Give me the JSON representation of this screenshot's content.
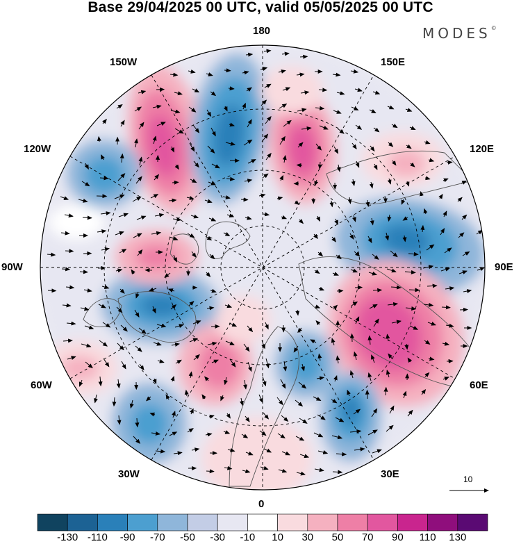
{
  "header": {
    "title": "Base 29/04/2025 00 UTC, valid 05/05/2025 00 UTC",
    "brand": "MODES",
    "brand_mark": "©"
  },
  "longitude_labels": [
    "180",
    "150E",
    "120E",
    "90E",
    "60E",
    "30E",
    "0",
    "30W",
    "60W",
    "90W",
    "120W",
    "150W"
  ],
  "reference_vector": {
    "label": "10",
    "icon": "arrow-right-icon"
  },
  "colorbar": {
    "colors": [
      "#10435f",
      "#1c6294",
      "#2a80b9",
      "#4c9fd0",
      "#8fb6da",
      "#c3cde6",
      "#e7e7f2",
      "#ffffff",
      "#f9dbdf",
      "#f5b1c0",
      "#ee7fa6",
      "#e2579f",
      "#c9258e",
      "#8f0e7c",
      "#5a0a73"
    ],
    "ticks": [
      "-130",
      "-110",
      "-90",
      "-70",
      "-50",
      "-30",
      "-10",
      "10",
      "30",
      "50",
      "70",
      "90",
      "110",
      "130"
    ]
  }
}
